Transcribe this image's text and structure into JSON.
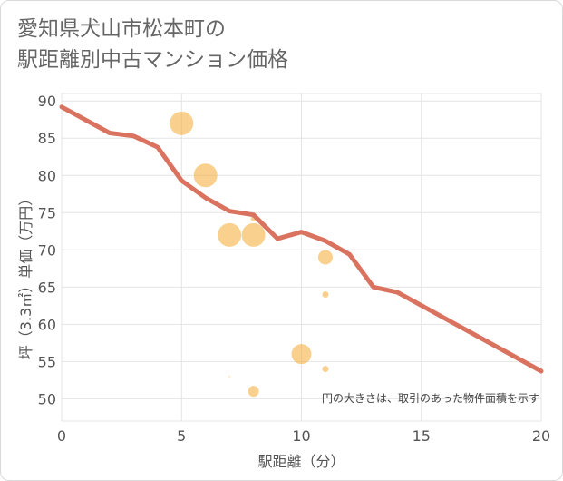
{
  "title_line1": "愛知県犬山市松本町の",
  "title_line2": "駅距離別中古マンション価格",
  "chart_data": {
    "type": "scatter",
    "title": "愛知県犬山市松本町の駅距離別中古マンション価格",
    "xlabel": "駅距離（分）",
    "ylabel": "坪（3.3㎡）単価（万円）",
    "xlim": [
      0,
      20
    ],
    "ylim": [
      47,
      91
    ],
    "xticks": [
      0,
      5,
      10,
      15,
      20
    ],
    "yticks": [
      50,
      55,
      60,
      65,
      70,
      75,
      80,
      85,
      90
    ],
    "grid": true,
    "note": "円の大きさは、取引のあった物件面積を示す",
    "bubble_color": "#f5b041",
    "line_color": "#d9735f",
    "points": [
      {
        "x": 5,
        "y": 87,
        "size": 13
      },
      {
        "x": 6,
        "y": 80,
        "size": 13
      },
      {
        "x": 7,
        "y": 72,
        "size": 13
      },
      {
        "x": 8,
        "y": 72,
        "size": 13
      },
      {
        "x": 8,
        "y": 74.2,
        "size": 3
      },
      {
        "x": 7,
        "y": 53,
        "size": 0.8
      },
      {
        "x": 8,
        "y": 51,
        "size": 6
      },
      {
        "x": 10,
        "y": 56,
        "size": 11
      },
      {
        "x": 11,
        "y": 69,
        "size": 8
      },
      {
        "x": 11,
        "y": 64,
        "size": 3.5
      },
      {
        "x": 11,
        "y": 54,
        "size": 3.5
      }
    ],
    "trend_line": [
      {
        "x": 0,
        "y": 89.2
      },
      {
        "x": 2,
        "y": 85.7
      },
      {
        "x": 3,
        "y": 85.3
      },
      {
        "x": 4,
        "y": 83.8
      },
      {
        "x": 5,
        "y": 79.3
      },
      {
        "x": 6,
        "y": 77
      },
      {
        "x": 7,
        "y": 75.2
      },
      {
        "x": 8,
        "y": 74.7
      },
      {
        "x": 9,
        "y": 71.5
      },
      {
        "x": 10,
        "y": 72.4
      },
      {
        "x": 11,
        "y": 71.2
      },
      {
        "x": 12,
        "y": 69.4
      },
      {
        "x": 13,
        "y": 65
      },
      {
        "x": 14,
        "y": 64.3
      },
      {
        "x": 20,
        "y": 53.7
      }
    ]
  }
}
